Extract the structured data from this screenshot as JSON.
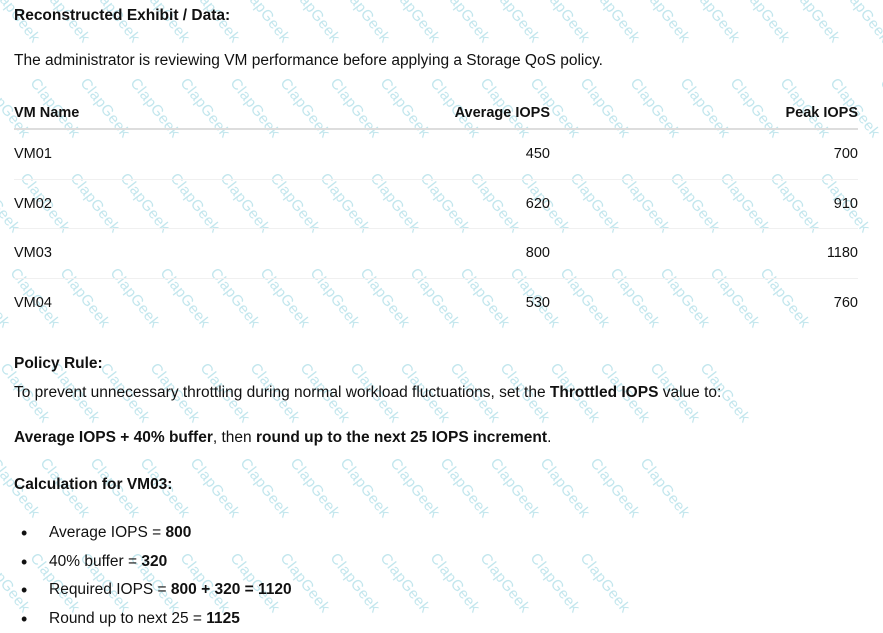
{
  "watermark": "ClapGeek",
  "title": "Reconstructed Exhibit / Data:",
  "intro": "The administrator is reviewing VM performance before applying a Storage QoS policy.",
  "table": {
    "headers": [
      "VM Name",
      "Average IOPS",
      "Peak IOPS"
    ],
    "rows": [
      [
        "VM01",
        "450",
        "700"
      ],
      [
        "VM02",
        "620",
        "910"
      ],
      [
        "VM03",
        "800",
        "1180"
      ],
      [
        "VM04",
        "530",
        "760"
      ]
    ]
  },
  "policy": {
    "heading": "Policy Rule:",
    "text_before": "To prevent unnecessary throttling during normal workload fluctuations, set the ",
    "text_bold": "Throttled IOPS",
    "text_after": " value to:",
    "formula_bold1": "Average IOPS + 40% buffer",
    "formula_mid": ", then ",
    "formula_bold2": "round up to the next 25 IOPS increment",
    "formula_end": "."
  },
  "calculation": {
    "heading": "Calculation for VM03:",
    "items": [
      {
        "label": "Average IOPS = ",
        "value": "800"
      },
      {
        "label": "40% buffer = ",
        "value": "320"
      },
      {
        "label": "Required IOPS = ",
        "value": "800 + 320 = 1120"
      },
      {
        "label": "Round up to next 25 = ",
        "value": "1125"
      }
    ]
  }
}
